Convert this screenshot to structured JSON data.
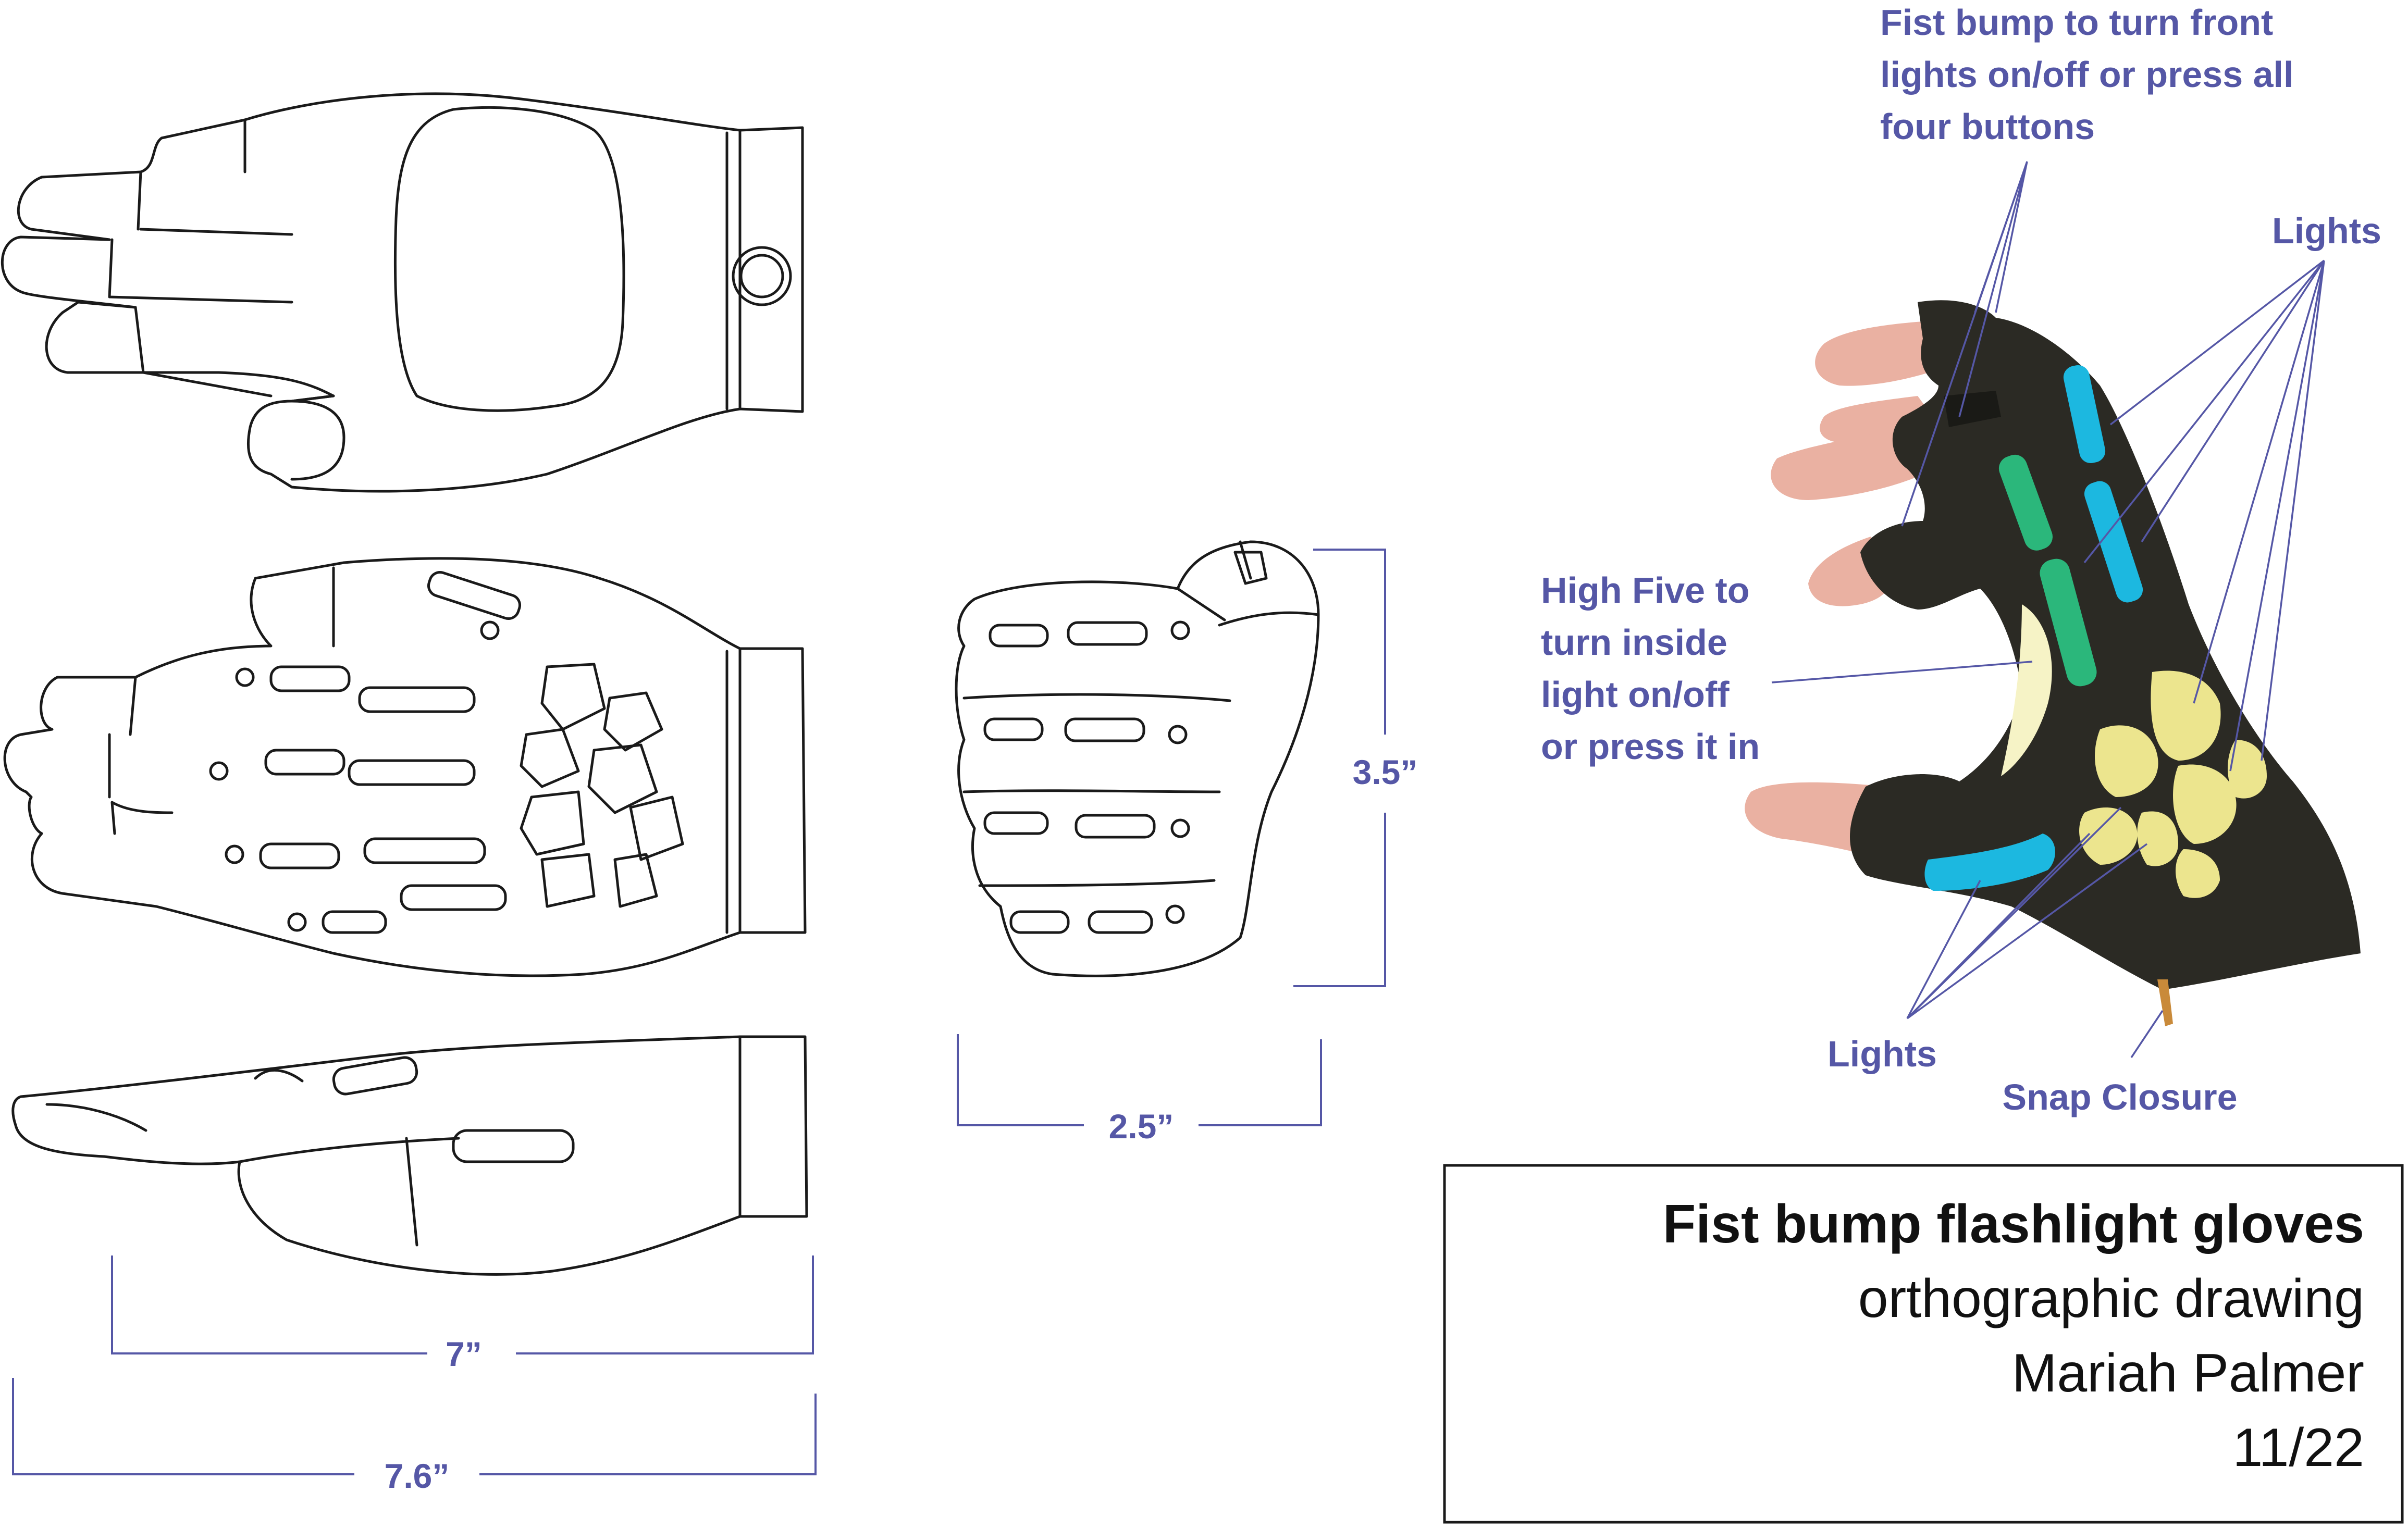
{
  "dimensions": {
    "hand_length": "7”",
    "total_length": "7.6”",
    "fist_height": "3.5”",
    "fist_width": "2.5”"
  },
  "annotations": {
    "fist_bump": [
      "Fist bump to turn front",
      "lights on/off or press all",
      "four buttons"
    ],
    "lights_top": "Lights",
    "high_five": [
      "High Five to",
      "turn inside",
      "light on/off",
      "or press it in"
    ],
    "lights_bottom": "Lights",
    "snap_closure": "Snap Closure"
  },
  "title_block": {
    "title": "Fist bump flashlight gloves",
    "subtitle": "orthographic drawing",
    "author": "Mariah Palmer",
    "date": "11/22"
  },
  "colors": {
    "annotation": "#5557a6",
    "glove": "#2b2a24",
    "skin": "#eab1a2",
    "light_blue": "#1cb8e0",
    "light_green": "#2bb77b",
    "light_yellow": "#ece58e"
  }
}
